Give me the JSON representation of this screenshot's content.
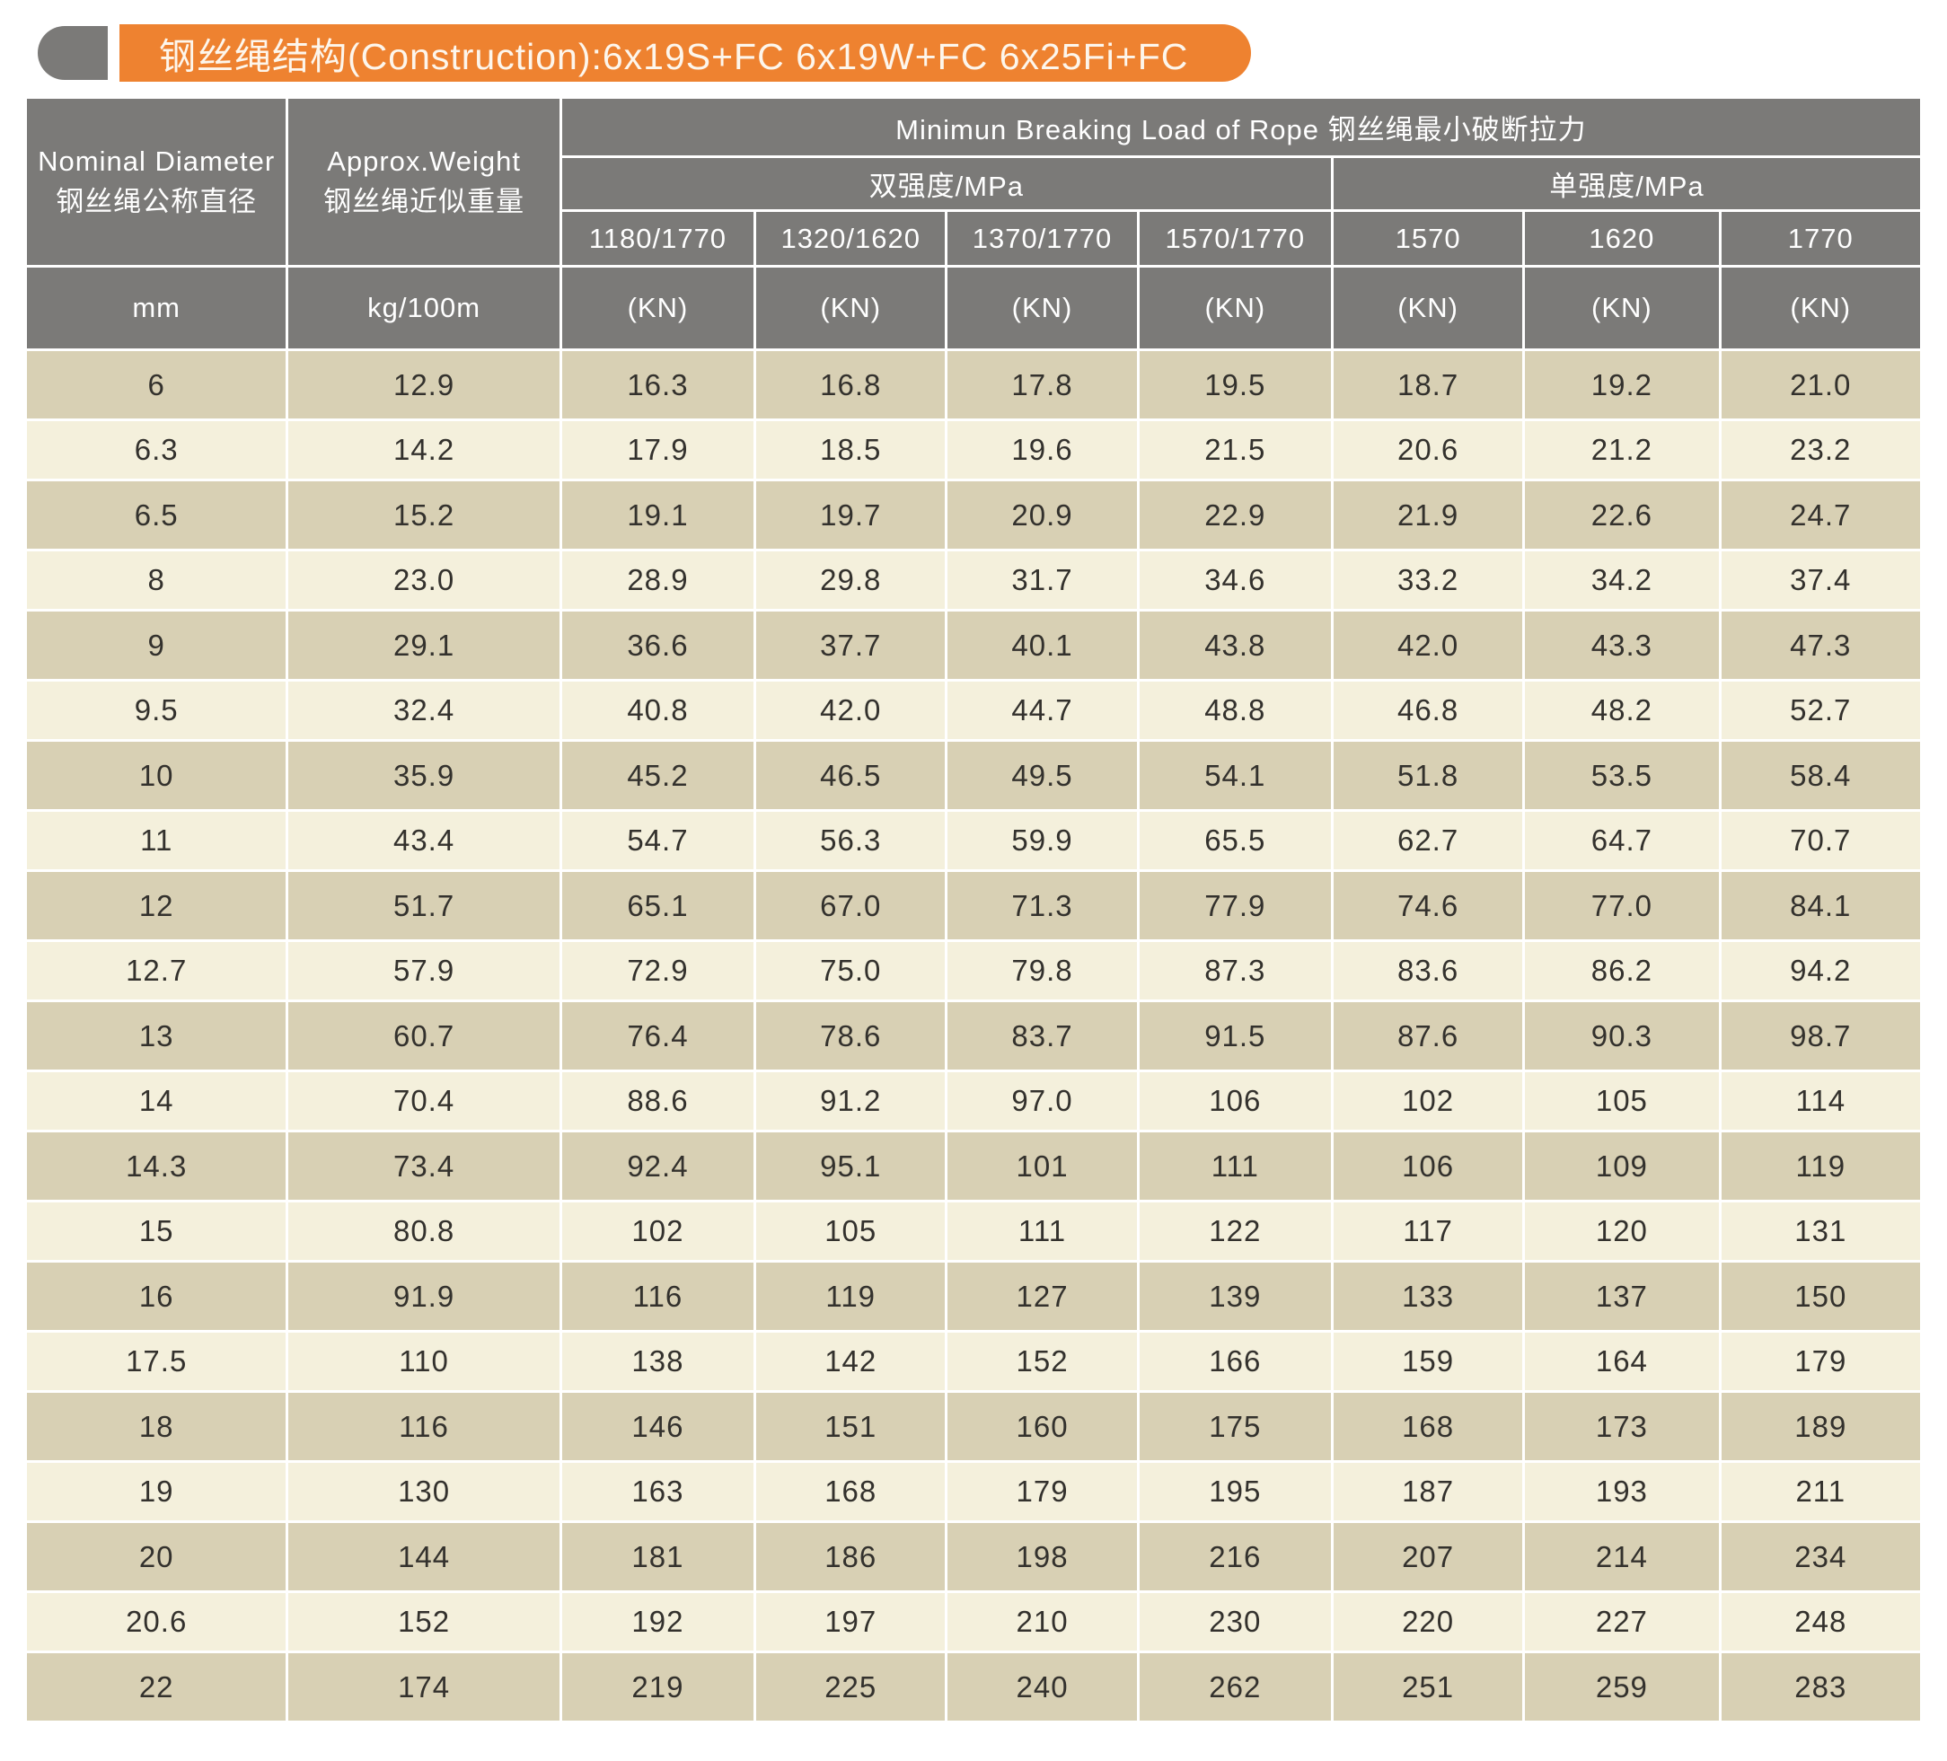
{
  "title": {
    "text": "钢丝绳结构(Construction):6x19S+FC  6x19W+FC  6x25Fi+FC"
  },
  "colors": {
    "accent_orange": "#ee8230",
    "header_gray": "#7b7a78",
    "row_dark_tan": "#d8d0b4",
    "row_light_cream": "#f4f0dc",
    "data_text": "#33312d"
  },
  "table": {
    "header": {
      "col1_en": "Nominal Diameter",
      "col1_zh": "钢丝绳公称直径",
      "col2_en": "Approx.Weight",
      "col2_zh": "钢丝绳近似重量",
      "breaking_load": "Minimun Breaking Load of Rope  钢丝绳最小破断拉力",
      "dual_strength": "双强度/MPa",
      "single_strength": "单强度/MPa",
      "grades": [
        "1180/1770",
        "1320/1620",
        "1370/1770",
        "1570/1770",
        "1570",
        "1620",
        "1770"
      ],
      "units": {
        "diameter": "mm",
        "weight": "kg/100m",
        "load": "(KN)"
      }
    },
    "rows": [
      [
        "6",
        "12.9",
        "16.3",
        "16.8",
        "17.8",
        "19.5",
        "18.7",
        "19.2",
        "21.0"
      ],
      [
        "6.3",
        "14.2",
        "17.9",
        "18.5",
        "19.6",
        "21.5",
        "20.6",
        "21.2",
        "23.2"
      ],
      [
        "6.5",
        "15.2",
        "19.1",
        "19.7",
        "20.9",
        "22.9",
        "21.9",
        "22.6",
        "24.7"
      ],
      [
        "8",
        "23.0",
        "28.9",
        "29.8",
        "31.7",
        "34.6",
        "33.2",
        "34.2",
        "37.4"
      ],
      [
        "9",
        "29.1",
        "36.6",
        "37.7",
        "40.1",
        "43.8",
        "42.0",
        "43.3",
        "47.3"
      ],
      [
        "9.5",
        "32.4",
        "40.8",
        "42.0",
        "44.7",
        "48.8",
        "46.8",
        "48.2",
        "52.7"
      ],
      [
        "10",
        "35.9",
        "45.2",
        "46.5",
        "49.5",
        "54.1",
        "51.8",
        "53.5",
        "58.4"
      ],
      [
        "11",
        "43.4",
        "54.7",
        "56.3",
        "59.9",
        "65.5",
        "62.7",
        "64.7",
        "70.7"
      ],
      [
        "12",
        "51.7",
        "65.1",
        "67.0",
        "71.3",
        "77.9",
        "74.6",
        "77.0",
        "84.1"
      ],
      [
        "12.7",
        "57.9",
        "72.9",
        "75.0",
        "79.8",
        "87.3",
        "83.6",
        "86.2",
        "94.2"
      ],
      [
        "13",
        "60.7",
        "76.4",
        "78.6",
        "83.7",
        "91.5",
        "87.6",
        "90.3",
        "98.7"
      ],
      [
        "14",
        "70.4",
        "88.6",
        "91.2",
        "97.0",
        "106",
        "102",
        "105",
        "114"
      ],
      [
        "14.3",
        "73.4",
        "92.4",
        "95.1",
        "101",
        "111",
        "106",
        "109",
        "119"
      ],
      [
        "15",
        "80.8",
        "102",
        "105",
        "111",
        "122",
        "117",
        "120",
        "131"
      ],
      [
        "16",
        "91.9",
        "116",
        "119",
        "127",
        "139",
        "133",
        "137",
        "150"
      ],
      [
        "17.5",
        "110",
        "138",
        "142",
        "152",
        "166",
        "159",
        "164",
        "179"
      ],
      [
        "18",
        "116",
        "146",
        "151",
        "160",
        "175",
        "168",
        "173",
        "189"
      ],
      [
        "19",
        "130",
        "163",
        "168",
        "179",
        "195",
        "187",
        "193",
        "211"
      ],
      [
        "20",
        "144",
        "181",
        "186",
        "198",
        "216",
        "207",
        "214",
        "234"
      ],
      [
        "20.6",
        "152",
        "192",
        "197",
        "210",
        "230",
        "220",
        "227",
        "248"
      ],
      [
        "22",
        "174",
        "219",
        "225",
        "240",
        "262",
        "251",
        "259",
        "283"
      ]
    ]
  }
}
